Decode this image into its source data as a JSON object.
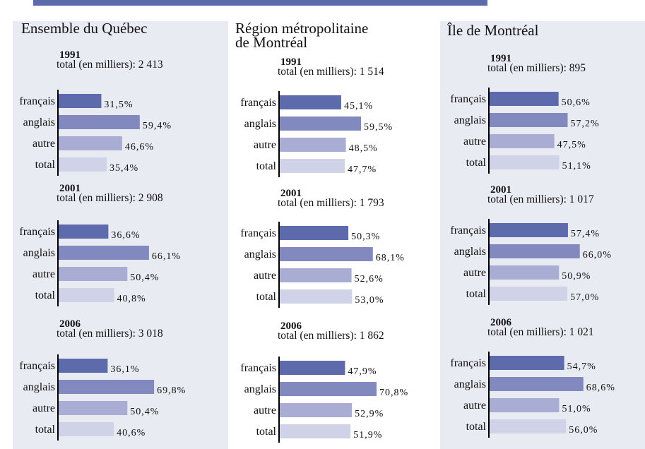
{
  "panel_titles": [
    [
      "Ensemble du Québec"
    ],
    [
      "Région métropolitaine",
      "de Montréal"
    ],
    [
      "Île de Montréal"
    ]
  ],
  "chart_data": [
    {
      "type": "bar",
      "orientation": "horizontal",
      "title": "1991",
      "subtitle": "total (en milliers): 2 413",
      "categories": [
        "français",
        "anglais",
        "autre",
        "total"
      ],
      "values": [
        31.5,
        59.4,
        46.6,
        35.4
      ],
      "value_labels": [
        "31,5%",
        "59,4%",
        "46,6%",
        "35,4%"
      ],
      "colors": [
        "#5d6aab",
        "#8189be",
        "#a9add3",
        "#d0d2e7"
      ],
      "xlim": [
        0,
        100
      ]
    },
    {
      "type": "bar",
      "orientation": "horizontal",
      "title": "2001",
      "subtitle": "total (en milliers):  2 908",
      "categories": [
        "français",
        "anglais",
        "autre",
        "total"
      ],
      "values": [
        36.6,
        66.1,
        50.4,
        40.8
      ],
      "value_labels": [
        "36,6%",
        "66,1%",
        "50,4%",
        "40,8%"
      ],
      "colors": [
        "#5d6aab",
        "#8189be",
        "#a9add3",
        "#d0d2e7"
      ],
      "xlim": [
        0,
        100
      ]
    },
    {
      "type": "bar",
      "orientation": "horizontal",
      "title": "2006",
      "subtitle": "total (en milliers): 3 018",
      "categories": [
        "français",
        "anglais",
        "autre",
        "total"
      ],
      "values": [
        36.1,
        69.8,
        50.4,
        40.6
      ],
      "value_labels": [
        "36,1%",
        "69,8%",
        "50,4%",
        "40,6%"
      ],
      "colors": [
        "#5d6aab",
        "#8189be",
        "#a9add3",
        "#d0d2e7"
      ],
      "xlim": [
        0,
        100
      ]
    },
    {
      "type": "bar",
      "orientation": "horizontal",
      "title": "1991",
      "subtitle": "total (en milliers):  1 514",
      "categories": [
        "français",
        "anglais",
        "autre",
        "total"
      ],
      "values": [
        45.1,
        59.5,
        48.5,
        47.7
      ],
      "value_labels": [
        "45,1%",
        "59,5%",
        "48,5%",
        "47,7%"
      ],
      "colors": [
        "#5d6aab",
        "#8189be",
        "#a9add3",
        "#d0d2e7"
      ],
      "xlim": [
        0,
        100
      ]
    },
    {
      "type": "bar",
      "orientation": "horizontal",
      "title": "2001",
      "subtitle": "total (en milliers): 1 793",
      "categories": [
        "français",
        "anglais",
        "autre",
        "total"
      ],
      "values": [
        50.3,
        68.1,
        52.6,
        53.0
      ],
      "value_labels": [
        "50,3%",
        "68,1%",
        "52,6%",
        "53,0%"
      ],
      "colors": [
        "#5d6aab",
        "#8189be",
        "#a9add3",
        "#d0d2e7"
      ],
      "xlim": [
        0,
        100
      ]
    },
    {
      "type": "bar",
      "orientation": "horizontal",
      "title": "2006",
      "subtitle": "total (en milliers): 1 862",
      "categories": [
        "français",
        "anglais",
        "autre",
        "total"
      ],
      "values": [
        47.9,
        70.8,
        52.9,
        51.9
      ],
      "value_labels": [
        "47,9%",
        "70,8%",
        "52,9%",
        "51,9%"
      ],
      "colors": [
        "#5d6aab",
        "#8189be",
        "#a9add3",
        "#d0d2e7"
      ],
      "xlim": [
        0,
        100
      ]
    },
    {
      "type": "bar",
      "orientation": "horizontal",
      "title": "1991",
      "subtitle": "total (en milliers): 895",
      "categories": [
        "français",
        "anglais",
        "autre",
        "total"
      ],
      "values": [
        50.6,
        57.2,
        47.5,
        51.1
      ],
      "value_labels": [
        "50,6%",
        "57,2%",
        "47,5%",
        "51,1%"
      ],
      "colors": [
        "#5d6aab",
        "#8189be",
        "#a9add3",
        "#d0d2e7"
      ],
      "xlim": [
        0,
        100
      ]
    },
    {
      "type": "bar",
      "orientation": "horizontal",
      "title": "2001",
      "subtitle": "total (en milliers): 1 017",
      "categories": [
        "français",
        "anglais",
        "autre",
        "total"
      ],
      "values": [
        57.4,
        66.0,
        50.9,
        57.0
      ],
      "value_labels": [
        "57,4%",
        "66,0%",
        "50,9%",
        "57,0%"
      ],
      "colors": [
        "#5d6aab",
        "#8189be",
        "#a9add3",
        "#d0d2e7"
      ],
      "xlim": [
        0,
        100
      ]
    },
    {
      "type": "bar",
      "orientation": "horizontal",
      "title": "2006",
      "subtitle": "total (en milliers): 1 021",
      "categories": [
        "français",
        "anglais",
        "autre",
        "total"
      ],
      "values": [
        54.7,
        68.6,
        51.0,
        56.0
      ],
      "value_labels": [
        "54,7%",
        "68,6%",
        "51,0%",
        "56,0%"
      ],
      "colors": [
        "#5d6aab",
        "#8189be",
        "#a9add3",
        "#d0d2e7"
      ],
      "xlim": [
        0,
        100
      ]
    }
  ]
}
